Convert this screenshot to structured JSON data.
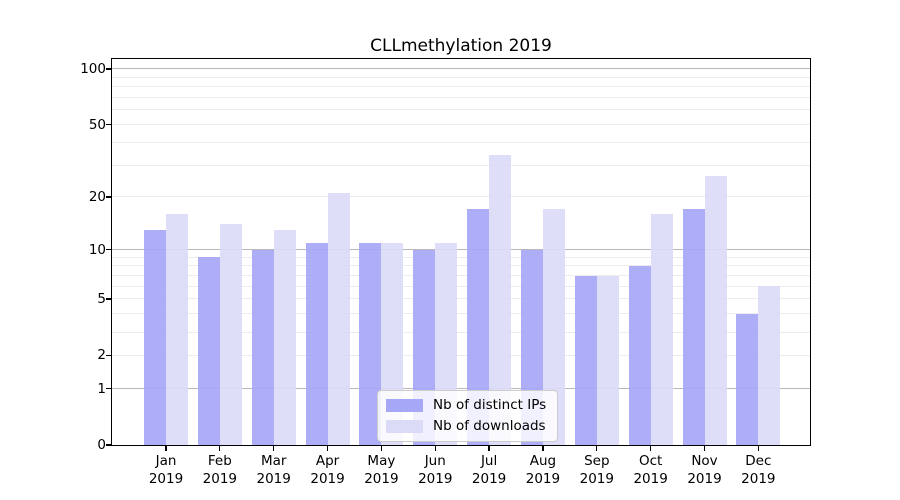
{
  "chart_data": {
    "type": "bar",
    "title": "CLLmethylation 2019",
    "categories": [
      "Jan 2019",
      "Feb 2019",
      "Mar 2019",
      "Apr 2019",
      "May 2019",
      "Jun 2019",
      "Jul 2019",
      "Aug 2019",
      "Sep 2019",
      "Oct 2019",
      "Nov 2019",
      "Dec 2019"
    ],
    "series": [
      {
        "name": "Nb of distinct IPs",
        "color": "#a7a7f8",
        "values": [
          13,
          9,
          10,
          11,
          11,
          10,
          17,
          10,
          7,
          8,
          17,
          4
        ]
      },
      {
        "name": "Nb of downloads",
        "color": "#dbdbf8",
        "values": [
          16,
          14,
          13,
          21,
          11,
          11,
          34,
          17,
          7,
          16,
          26,
          6
        ]
      }
    ],
    "xlabel": "",
    "ylabel": "",
    "yscale": "log1p",
    "ylim": [
      0,
      116
    ],
    "yticks": [
      0,
      1,
      2,
      5,
      10,
      20,
      50,
      100
    ],
    "grid": {
      "on": true,
      "major_lines": [
        1,
        10,
        100
      ],
      "minor_lines": [
        2,
        3,
        4,
        5,
        6,
        7,
        8,
        9,
        20,
        30,
        40,
        50,
        60,
        70,
        80,
        90
      ],
      "major_color": "#b8b8b8",
      "minor_color": "#ececec"
    },
    "legend": {
      "position": "lower center",
      "entries": [
        "Nb of distinct IPs",
        "Nb of downloads"
      ]
    },
    "colors": {
      "background": "#ffffff",
      "axis": "#000000",
      "bar_dark": "#a7a7f8",
      "bar_light": "#dbdbf8"
    }
  }
}
